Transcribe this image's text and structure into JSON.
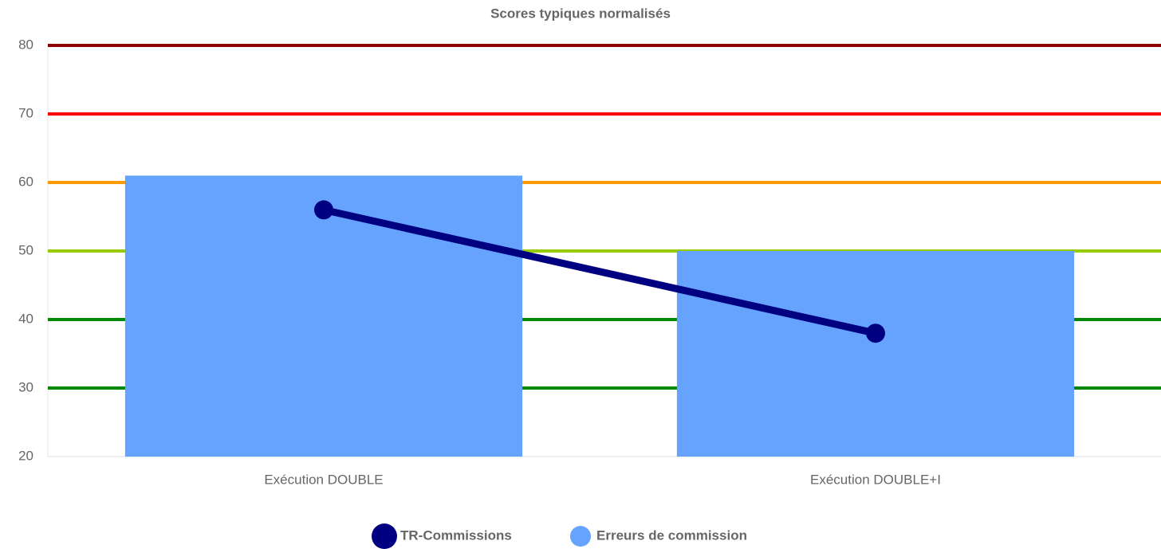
{
  "chart_data": {
    "type": "combo",
    "title": "Scores typiques normalisés",
    "categories": [
      "Exécution DOUBLE",
      "Exécution DOUBLE+I"
    ],
    "series": [
      {
        "name": "TR-Commissions",
        "type": "line",
        "color": "#000080",
        "values": [
          56,
          38
        ]
      },
      {
        "name": "Erreurs de commission",
        "type": "bar",
        "color": "#66a3ff",
        "values": [
          61,
          50
        ]
      }
    ],
    "ylim": [
      20,
      80
    ],
    "yticks": [
      20,
      30,
      40,
      50,
      60,
      70,
      80
    ],
    "grid": true,
    "grid_colors": [
      "#dddddd",
      "#008800",
      "#008800",
      "#99cc00",
      "#ff9900",
      "#ff0000",
      "#8b0000"
    ],
    "legend": "bottom"
  }
}
